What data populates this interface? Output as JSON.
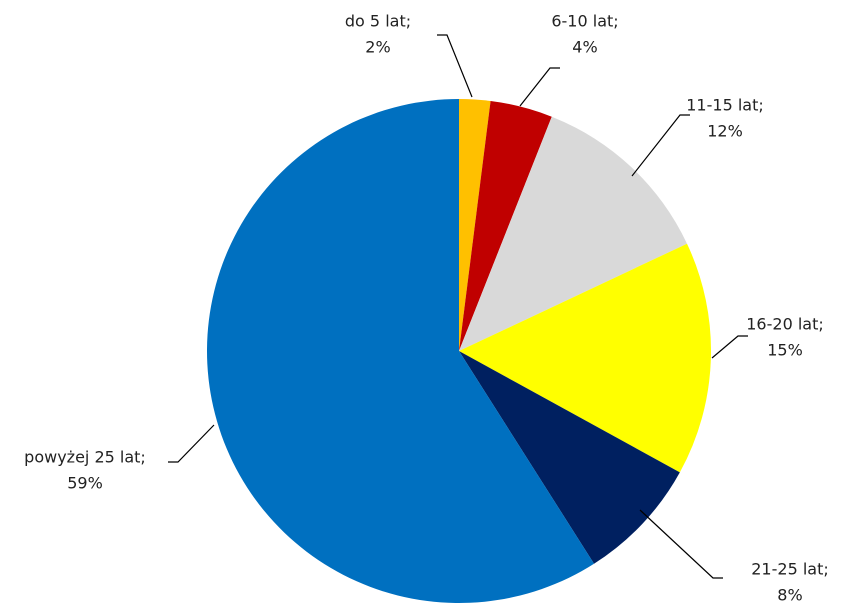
{
  "chart_data": {
    "type": "pie",
    "categories": [
      "do 5 lat;",
      "6-10 lat;",
      "11-15 lat;",
      "16-20 lat;",
      "21-25 lat;",
      "powyżej 25 lat;"
    ],
    "values": [
      2,
      4,
      12,
      15,
      8,
      59
    ],
    "value_labels": [
      "2%",
      "4%",
      "12%",
      "15%",
      "8%",
      "59%"
    ],
    "colors": [
      "#FFC000",
      "#C00000",
      "#D9D9D9",
      "#FFFF00",
      "#002060",
      "#0070C0"
    ]
  }
}
